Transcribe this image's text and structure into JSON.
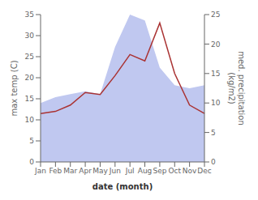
{
  "chart_data": {
    "type": "line",
    "categories": [
      "Jan",
      "Feb",
      "Mar",
      "Apr",
      "May",
      "Jun",
      "Jul",
      "Aug",
      "Sep",
      "Oct",
      "Nov",
      "Dec"
    ],
    "series": [
      {
        "type": "area",
        "axis": "y2",
        "color": "#c0c8f0",
        "values": [
          10.0,
          11.0,
          11.5,
          12.0,
          11.5,
          19.5,
          25.0,
          24.0,
          16.0,
          13.0,
          12.5,
          13.0
        ]
      },
      {
        "type": "line",
        "color": "#aa3333",
        "values": [
          11.5,
          12.0,
          13.5,
          16.5,
          16.0,
          20.5,
          25.5,
          24.0,
          33.0,
          21.0,
          13.5,
          11.5
        ]
      }
    ],
    "xlabel": "date (month)",
    "ylabel": "max temp (C)",
    "y2label": "med. precipitation\n(kg/m2)",
    "ylim": [
      0,
      35
    ],
    "yticks": [
      0,
      5,
      10,
      15,
      20,
      25,
      30,
      35
    ],
    "y2lim": [
      0,
      25
    ],
    "y2ticks": [
      0,
      5,
      10,
      15,
      20,
      25
    ],
    "grid": false
  }
}
